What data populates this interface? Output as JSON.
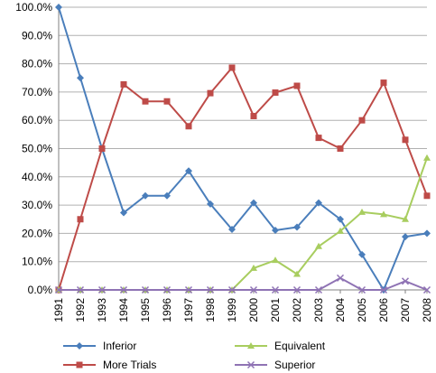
{
  "chart_data": {
    "type": "line",
    "title": "",
    "xlabel": "",
    "ylabel": "",
    "ylim": [
      0,
      100
    ],
    "y_ticks": [
      "0.0%",
      "10.0%",
      "20.0%",
      "30.0%",
      "40.0%",
      "50.0%",
      "60.0%",
      "70.0%",
      "80.0%",
      "90.0%",
      "100.0%"
    ],
    "grid": true,
    "legend_position": "bottom",
    "categories": [
      "1991",
      "1992",
      "1993",
      "1994",
      "1995",
      "1996",
      "1997",
      "1998",
      "1999",
      "2000",
      "2001",
      "2002",
      "2003",
      "2004",
      "2005",
      "2006",
      "2007",
      "2008"
    ],
    "series": [
      {
        "name": "Inferior",
        "color": "#4a7ebb",
        "marker": "diamond",
        "values": [
          100,
          75,
          50,
          27.3,
          33.3,
          33.3,
          42.1,
          30.4,
          21.4,
          30.8,
          21.1,
          22.2,
          30.8,
          25,
          12.5,
          0,
          18.8,
          20
        ]
      },
      {
        "name": "More Trials",
        "color": "#be4b48",
        "marker": "square",
        "values": [
          0,
          25,
          50,
          72.7,
          66.7,
          66.7,
          57.9,
          69.6,
          78.6,
          61.5,
          69.8,
          72.2,
          53.8,
          50,
          60,
          73.3,
          53.1,
          33.3
        ]
      },
      {
        "name": "Equivalent",
        "color": "#a8cd5f",
        "marker": "triangle",
        "values": [
          0,
          0,
          0,
          0,
          0,
          0,
          0,
          0,
          0,
          7.7,
          10.5,
          5.6,
          15.4,
          20.8,
          27.5,
          26.7,
          25,
          46.7
        ]
      },
      {
        "name": "Superior",
        "color": "#8f73b4",
        "marker": "x",
        "values": [
          0,
          0,
          0,
          0,
          0,
          0,
          0,
          0,
          0,
          0,
          0,
          0,
          0,
          4.2,
          0,
          0,
          3.1,
          0
        ]
      }
    ]
  }
}
